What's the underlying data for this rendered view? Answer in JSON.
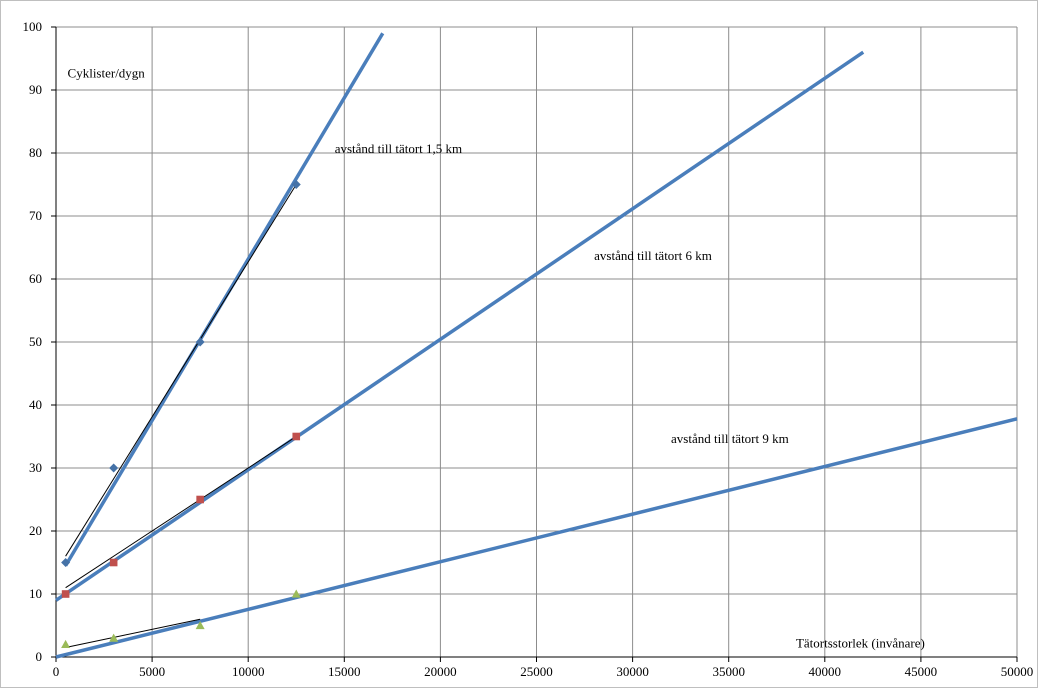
{
  "chart_data": {
    "type": "scatter",
    "title": "",
    "xlabel": "",
    "ylabel": "",
    "xlim": [
      0,
      50000
    ],
    "ylim": [
      0,
      100
    ],
    "x_ticks": [
      0,
      5000,
      10000,
      15000,
      20000,
      25000,
      30000,
      35000,
      40000,
      45000,
      50000
    ],
    "y_ticks": [
      0,
      10,
      20,
      30,
      40,
      50,
      60,
      70,
      80,
      90,
      100
    ],
    "grid": true,
    "legend": "none",
    "colors": {
      "trend": "#4a7ebb",
      "connector": "#000000",
      "series_a": "#4572a7",
      "series_b": "#c0504d",
      "series_c": "#9bbb59",
      "grid": "#8c8c8c"
    },
    "series": [
      {
        "marker": "diamond",
        "color": "#4572a7",
        "x": [
          500,
          3000,
          7500,
          12500
        ],
        "y": [
          15,
          30,
          50,
          75
        ],
        "connector": [
          [
            500,
            16
          ],
          [
            12500,
            75
          ]
        ],
        "trend": [
          [
            500,
            14.5
          ],
          [
            17000,
            99
          ]
        ]
      },
      {
        "marker": "square",
        "color": "#c0504d",
        "x": [
          500,
          3000,
          7500,
          12500
        ],
        "y": [
          10,
          15,
          25,
          35
        ],
        "connector": [
          [
            500,
            11
          ],
          [
            12500,
            35
          ]
        ],
        "trend": [
          [
            0,
            9
          ],
          [
            42000,
            96
          ]
        ]
      },
      {
        "marker": "triangle",
        "color": "#9bbb59",
        "x": [
          500,
          3000,
          7500,
          12500
        ],
        "y": [
          2,
          3,
          5,
          10
        ],
        "connector": [
          [
            500,
            1.5
          ],
          [
            7500,
            6
          ]
        ],
        "trend": [
          [
            0,
            0
          ],
          [
            50000,
            37.8
          ]
        ]
      }
    ],
    "annotations": [
      {
        "text": "Cyklister/dygn",
        "x": 600,
        "y": 92
      },
      {
        "text": "avstånd  till tätort 1,5 km",
        "x": 14500,
        "y": 80
      },
      {
        "text": "avstånd  till tätort 6 km",
        "x": 28000,
        "y": 63
      },
      {
        "text": "avstånd  till tätort 9 km",
        "x": 32000,
        "y": 34
      },
      {
        "text": "Tätortsstorlek (invånare)",
        "x": 38500,
        "y": 1.5
      }
    ]
  }
}
